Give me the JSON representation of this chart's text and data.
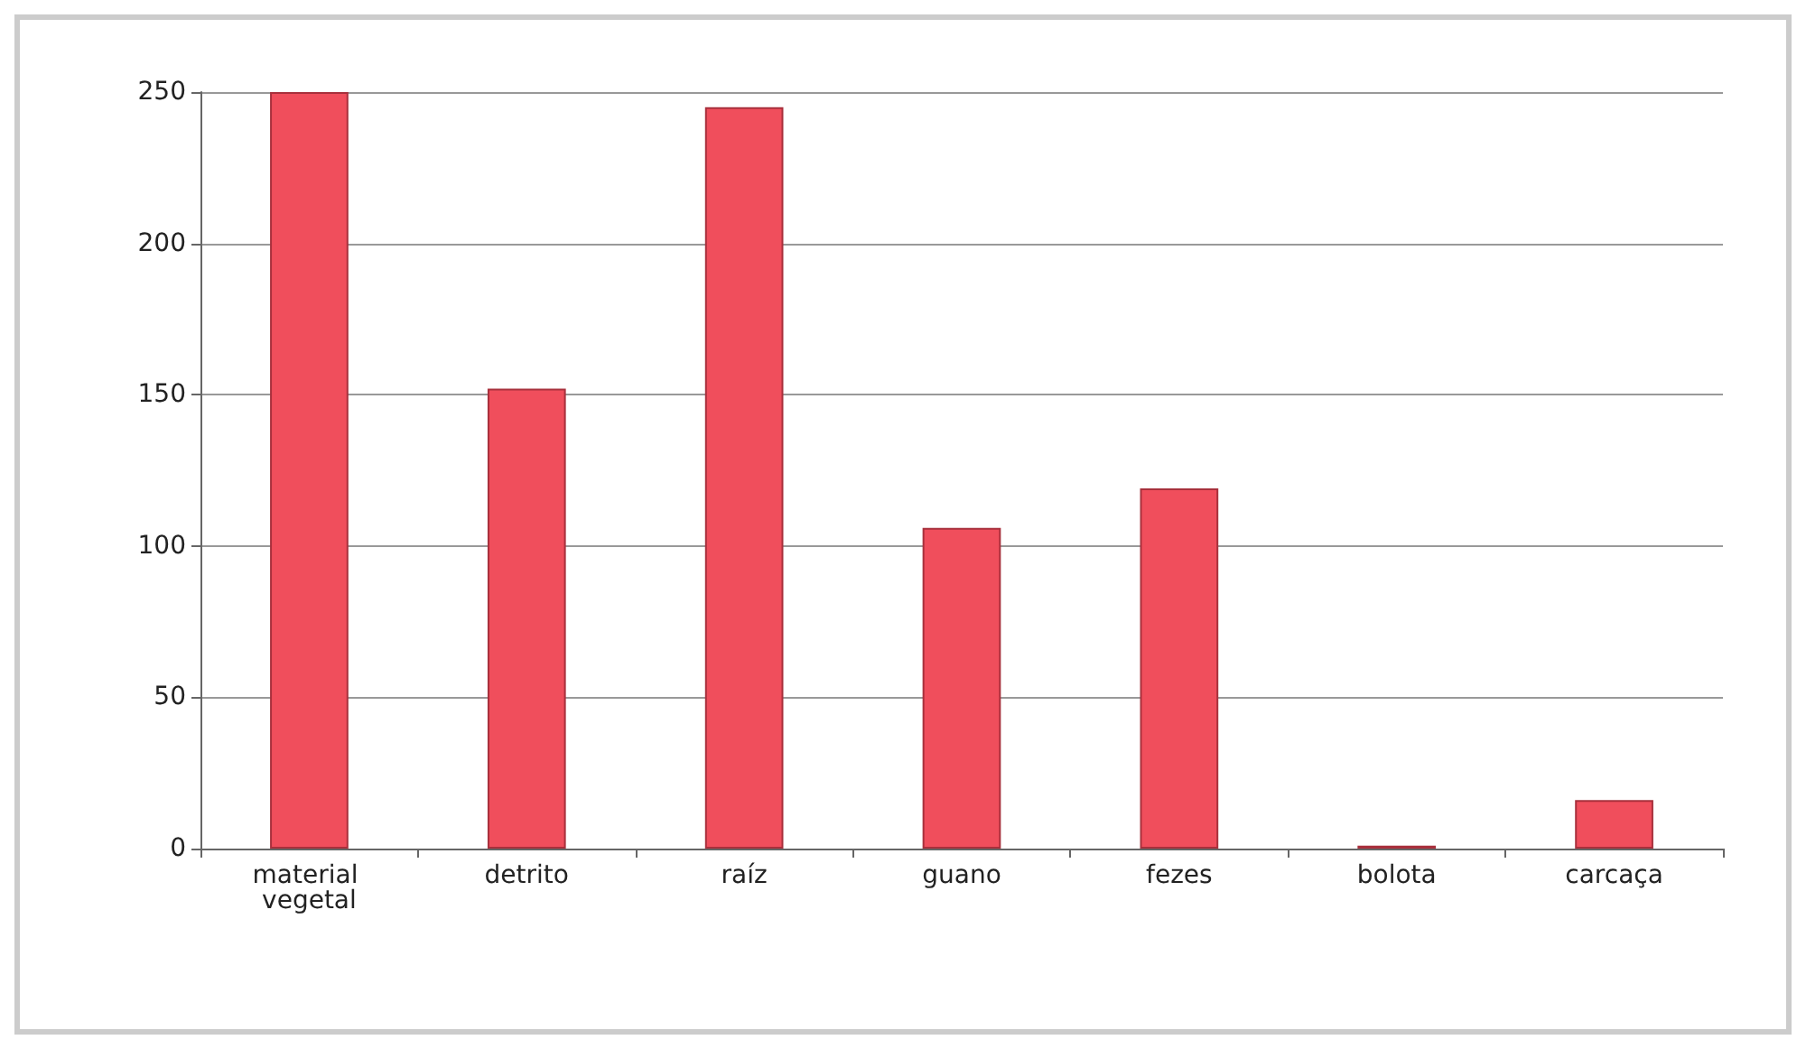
{
  "chart_data": {
    "type": "bar",
    "categories": [
      "material vegetal",
      "detrito",
      "raíz",
      "guano",
      "fezes",
      "bolota",
      "carcaça"
    ],
    "values": [
      250,
      152,
      245,
      106,
      119,
      1,
      16
    ],
    "color": "#f04e5c",
    "ylim": [
      0,
      250
    ],
    "yticks": [
      0,
      50,
      100,
      150,
      200,
      250
    ],
    "grid": "y"
  }
}
